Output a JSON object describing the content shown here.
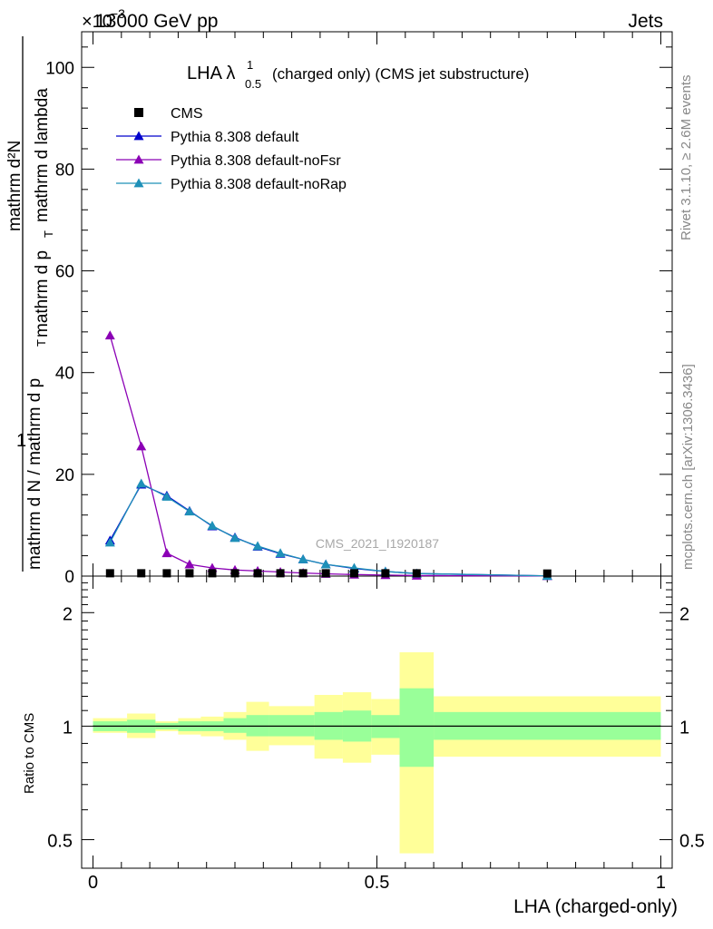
{
  "header": {
    "left": "13000 GeV pp",
    "right": "Jets",
    "exponent_base": "×10",
    "exponent_power": "−3"
  },
  "side_labels": {
    "rivet": "Rivet 3.1.10, ≥ 2.6M events",
    "mcplots": "mcplots.cern.ch [arXiv:1306.3436]"
  },
  "main_plot": {
    "title_prefix": "LHA λ",
    "title_sup": "1",
    "title_sub": "0.5",
    "title_suffix": "(charged only) (CMS jet substructure)",
    "ylabel_num": "1",
    "ylabel_den": "mathrm d N / mathrm d p",
    "ylabel_den_sub": "T",
    "ylabel_num_full": "mathrm d²N",
    "ylabel_den_full": "mathrm d p",
    "ylabel_den_full_rest": "mathrm d lambda",
    "watermark": "CMS_2021_I1920187"
  },
  "ratio_plot": {
    "ylabel": "Ratio to CMS",
    "xlabel": "LHA (charged-only)"
  },
  "colors": {
    "cms": "#000000",
    "default": "#0000cc",
    "noFsr": "#8b00b5",
    "noRap": "#1e90b8",
    "band_inner": "#99ff99",
    "band_outer": "#ffff99"
  },
  "chart_data": [
    {
      "type": "line",
      "title": "LHA λ^1_0.5 (charged only) (CMS jet substructure)",
      "xlim": [
        -0.02,
        1.02
      ],
      "ylim": [
        0,
        107
      ],
      "y_scale_factor": "×10^3",
      "yticks": [
        0,
        20,
        40,
        60,
        80,
        100
      ],
      "xticks": [
        0,
        0.5,
        1
      ],
      "legend_position": "top-left",
      "x": [
        0.03,
        0.085,
        0.13,
        0.17,
        0.21,
        0.25,
        0.29,
        0.33,
        0.37,
        0.41,
        0.46,
        0.515,
        0.57,
        0.8
      ],
      "series": [
        {
          "name": "CMS",
          "marker": "square",
          "values": [
            0.2,
            0.2,
            0.2,
            0.2,
            0.2,
            0.2,
            0.2,
            0.2,
            0.2,
            0.2,
            0.2,
            0.2,
            0.2,
            0.15
          ]
        },
        {
          "name": "Pythia 8.308 default",
          "marker": "triangle",
          "values": [
            7.0,
            18.0,
            15.8,
            12.8,
            9.8,
            7.6,
            5.8,
            4.4,
            3.3,
            2.3,
            1.5,
            0.9,
            0.5,
            0.05
          ]
        },
        {
          "name": "Pythia 8.308 default-noFsr",
          "marker": "triangle",
          "values": [
            47.3,
            25.5,
            4.5,
            2.3,
            1.6,
            1.2,
            1.0,
            0.8,
            0.6,
            0.45,
            0.3,
            0.2,
            0.1,
            0.02
          ]
        },
        {
          "name": "Pythia 8.308 default-noRap",
          "marker": "triangle",
          "values": [
            6.6,
            18.2,
            15.6,
            12.7,
            9.9,
            7.5,
            5.9,
            4.5,
            3.3,
            2.3,
            1.6,
            0.9,
            0.5,
            0.05
          ]
        }
      ]
    },
    {
      "type": "area",
      "ylabel": "Ratio to CMS",
      "xlabel": "LHA (charged-only)",
      "xlim": [
        -0.02,
        1.02
      ],
      "ylim": [
        0.42,
        2.5
      ],
      "log_scale_y": true,
      "yticks": [
        0.5,
        1,
        2
      ],
      "xticks": [
        0,
        0.5,
        1
      ],
      "bins": [
        {
          "x0": 0.0,
          "x1": 0.06,
          "inner": [
            0.97,
            1.03
          ],
          "outer": [
            0.96,
            1.05
          ]
        },
        {
          "x0": 0.06,
          "x1": 0.11,
          "inner": [
            0.96,
            1.04
          ],
          "outer": [
            0.93,
            1.08
          ]
        },
        {
          "x0": 0.11,
          "x1": 0.15,
          "inner": [
            0.98,
            1.02
          ],
          "outer": [
            0.97,
            1.03
          ]
        },
        {
          "x0": 0.15,
          "x1": 0.19,
          "inner": [
            0.97,
            1.03
          ],
          "outer": [
            0.95,
            1.05
          ]
        },
        {
          "x0": 0.19,
          "x1": 0.23,
          "inner": [
            0.97,
            1.03
          ],
          "outer": [
            0.94,
            1.06
          ]
        },
        {
          "x0": 0.23,
          "x1": 0.27,
          "inner": [
            0.96,
            1.05
          ],
          "outer": [
            0.92,
            1.09
          ]
        },
        {
          "x0": 0.27,
          "x1": 0.31,
          "inner": [
            0.94,
            1.07
          ],
          "outer": [
            0.86,
            1.16
          ]
        },
        {
          "x0": 0.31,
          "x1": 0.39,
          "inner": [
            0.94,
            1.07
          ],
          "outer": [
            0.89,
            1.13
          ]
        },
        {
          "x0": 0.39,
          "x1": 0.44,
          "inner": [
            0.92,
            1.09
          ],
          "outer": [
            0.82,
            1.21
          ]
        },
        {
          "x0": 0.44,
          "x1": 0.49,
          "inner": [
            0.91,
            1.1
          ],
          "outer": [
            0.8,
            1.23
          ]
        },
        {
          "x0": 0.49,
          "x1": 0.54,
          "inner": [
            0.93,
            1.07
          ],
          "outer": [
            0.84,
            1.18
          ]
        },
        {
          "x0": 0.54,
          "x1": 0.6,
          "inner": [
            0.78,
            1.26
          ],
          "outer": [
            0.46,
            1.57
          ]
        },
        {
          "x0": 0.6,
          "x1": 1.0,
          "inner": [
            0.92,
            1.09
          ],
          "outer": [
            0.83,
            1.2
          ]
        }
      ]
    }
  ]
}
